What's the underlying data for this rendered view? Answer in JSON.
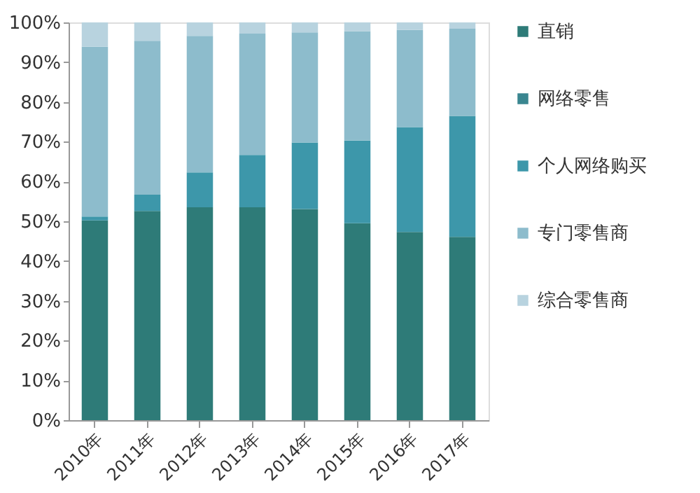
{
  "chart_data": {
    "type": "bar",
    "stacked": true,
    "categories": [
      "2010年",
      "2011年",
      "2012年",
      "2013年",
      "2014年",
      "2015年",
      "2016年",
      "2017年"
    ],
    "series": [
      {
        "name": "直销",
        "color": "#2e7b78",
        "values": [
          50.2,
          52.6,
          53.5,
          53.5,
          53.1,
          49.5,
          47.3,
          46.1
        ]
      },
      {
        "name": "网络零售",
        "color": "#3a8690",
        "values": [
          0,
          0,
          0,
          0,
          0,
          0,
          0,
          0
        ]
      },
      {
        "name": "个人网络购买",
        "color": "#3d97aa",
        "values": [
          1.0,
          4.1,
          8.8,
          13.2,
          16.7,
          20.8,
          26.4,
          30.4
        ]
      },
      {
        "name": "专门零售商",
        "color": "#8dbccc",
        "values": [
          42.7,
          38.7,
          34.3,
          30.5,
          27.7,
          27.5,
          24.4,
          21.9
        ]
      },
      {
        "name": "综合零售商",
        "color": "#b8d3df",
        "values": [
          6.1,
          4.6,
          3.4,
          2.8,
          2.5,
          2.2,
          1.9,
          1.6
        ]
      }
    ],
    "ylim": [
      0,
      100
    ],
    "yticks": [
      {
        "value": 0,
        "label": "0%"
      },
      {
        "value": 10,
        "label": "10%"
      },
      {
        "value": 20,
        "label": "20%"
      },
      {
        "value": 30,
        "label": "30%"
      },
      {
        "value": 40,
        "label": "40%"
      },
      {
        "value": 50,
        "label": "50%"
      },
      {
        "value": 60,
        "label": "60%"
      },
      {
        "value": 70,
        "label": "70%"
      },
      {
        "value": 80,
        "label": "80%"
      },
      {
        "value": 90,
        "label": "90%"
      },
      {
        "value": 100,
        "label": "100%"
      }
    ],
    "grid": false,
    "legend": "right"
  }
}
